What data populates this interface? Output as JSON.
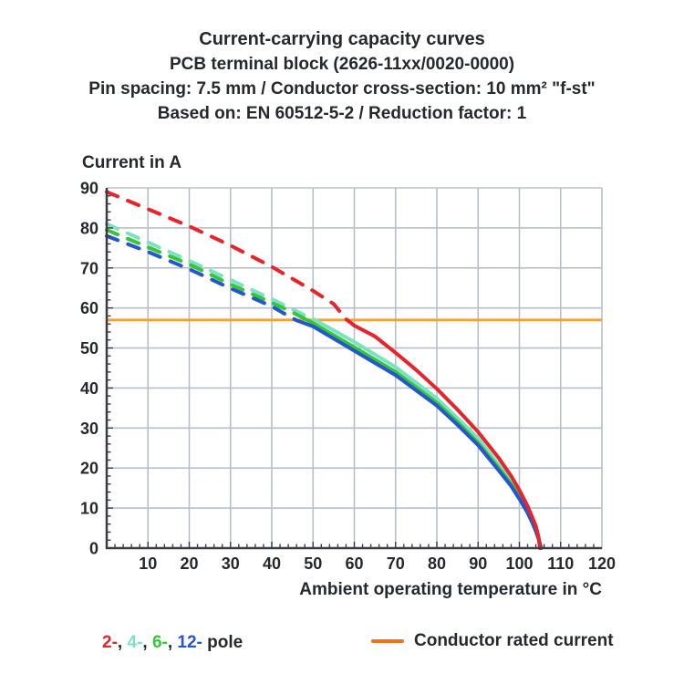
{
  "header": {
    "title": "Current-carrying capacity curves",
    "subtitle_product": "PCB terminal block (2626-11xx/0020-0000)",
    "subtitle_specs": "Pin spacing: 7.5 mm / Conductor cross-section: 10 mm² \"f-st\"",
    "subtitle_standard": "Based on: EN 60512-5-2 / Reduction factor: 1"
  },
  "colors": {
    "text": "#26282d",
    "axis": "#3b3d42",
    "grid": "#b7c0c8",
    "pole2": "#e8232a",
    "pole4": "#7ce0c2",
    "pole6": "#35c535",
    "pole12": "#2456cf",
    "rated_line": "#f7a02c",
    "rated_swatch": "#f2711c"
  },
  "chart_data": {
    "type": "line",
    "title": "Current-carrying capacity curves",
    "xlabel": "Ambient operating temperature in °C",
    "ylabel": "Current in A",
    "xlim": [
      0,
      120
    ],
    "ylim": [
      0,
      90
    ],
    "xticks": [
      10,
      20,
      30,
      40,
      50,
      60,
      70,
      80,
      90,
      100,
      110,
      120
    ],
    "yticks": [
      0,
      10,
      20,
      30,
      40,
      50,
      60,
      70,
      80,
      90
    ],
    "minor_tick_step": 2,
    "grid": true,
    "line_style_note": "curves dashed above rated current, solid below",
    "rated_current": {
      "label": "Conductor rated current",
      "value": 57
    },
    "series": [
      {
        "name": "2-pole",
        "color": "#e8232a",
        "points": [
          [
            0,
            89
          ],
          [
            10,
            84.7
          ],
          [
            20,
            80.4
          ],
          [
            30,
            75.6
          ],
          [
            40,
            70.3
          ],
          [
            50,
            64.3
          ],
          [
            55,
            61
          ],
          [
            58,
            57.2
          ],
          [
            60,
            55.6
          ],
          [
            65,
            52.9
          ],
          [
            70,
            48.8
          ],
          [
            75,
            44.5
          ],
          [
            80,
            39.8
          ],
          [
            85,
            34.6
          ],
          [
            90,
            29
          ],
          [
            95,
            22.5
          ],
          [
            98,
            18
          ],
          [
            100,
            14.5
          ],
          [
            102,
            10.5
          ],
          [
            103,
            8
          ],
          [
            104,
            5.5
          ],
          [
            104.6,
            3
          ],
          [
            105,
            0
          ]
        ]
      },
      {
        "name": "4-pole",
        "color": "#7ce0c2",
        "points": [
          [
            0,
            81
          ],
          [
            10,
            76.4
          ],
          [
            20,
            71.8
          ],
          [
            30,
            67
          ],
          [
            40,
            62.2
          ],
          [
            45,
            59.7
          ],
          [
            50,
            57.2
          ],
          [
            52,
            56.1
          ],
          [
            55,
            54.4
          ],
          [
            60,
            51.5
          ],
          [
            70,
            45.2
          ],
          [
            80,
            37.4
          ],
          [
            85,
            32.5
          ],
          [
            90,
            27.4
          ],
          [
            95,
            20.8
          ],
          [
            98,
            16.7
          ],
          [
            100,
            13.4
          ],
          [
            102,
            9.7
          ],
          [
            103,
            7.4
          ],
          [
            104,
            5
          ],
          [
            104.7,
            2.5
          ],
          [
            105.2,
            0
          ]
        ]
      },
      {
        "name": "6-pole",
        "color": "#35c535",
        "points": [
          [
            0,
            79.5
          ],
          [
            10,
            75.2
          ],
          [
            20,
            70.9
          ],
          [
            30,
            65.9
          ],
          [
            40,
            61.3
          ],
          [
            45,
            58.9
          ],
          [
            48,
            57.3
          ],
          [
            50,
            56.2
          ],
          [
            60,
            50.2
          ],
          [
            70,
            44
          ],
          [
            80,
            36.3
          ],
          [
            85,
            31.5
          ],
          [
            90,
            26.3
          ],
          [
            95,
            20
          ],
          [
            98,
            16
          ],
          [
            100,
            12.8
          ],
          [
            102,
            9.2
          ],
          [
            103,
            7
          ],
          [
            104,
            4.6
          ],
          [
            104.7,
            2.2
          ],
          [
            105.1,
            0
          ]
        ]
      },
      {
        "name": "12-pole",
        "color": "#2456cf",
        "points": [
          [
            0,
            78
          ],
          [
            10,
            74
          ],
          [
            20,
            69.7
          ],
          [
            30,
            64.9
          ],
          [
            40,
            60.4
          ],
          [
            44,
            58
          ],
          [
            46,
            56.9
          ],
          [
            50,
            55.4
          ],
          [
            60,
            49.3
          ],
          [
            70,
            43.2
          ],
          [
            80,
            35.6
          ],
          [
            85,
            30.8
          ],
          [
            90,
            25.7
          ],
          [
            95,
            19.4
          ],
          [
            98,
            15.5
          ],
          [
            100,
            12.3
          ],
          [
            102,
            8.8
          ],
          [
            103,
            6.6
          ],
          [
            104,
            4.2
          ],
          [
            104.8,
            1.8
          ],
          [
            105.3,
            0
          ]
        ]
      }
    ],
    "legend": {
      "items": [
        {
          "pole": "2",
          "label": "2-",
          "color": "#e8232a"
        },
        {
          "pole": "4",
          "label": "4-",
          "color": "#7ce0c2"
        },
        {
          "pole": "6",
          "label": "6-",
          "color": "#35c535"
        },
        {
          "pole": "12",
          "label": "12-",
          "color": "#2456cf"
        }
      ],
      "separator": ", ",
      "suffix": " pole",
      "rated_label": "Conductor rated current"
    }
  }
}
